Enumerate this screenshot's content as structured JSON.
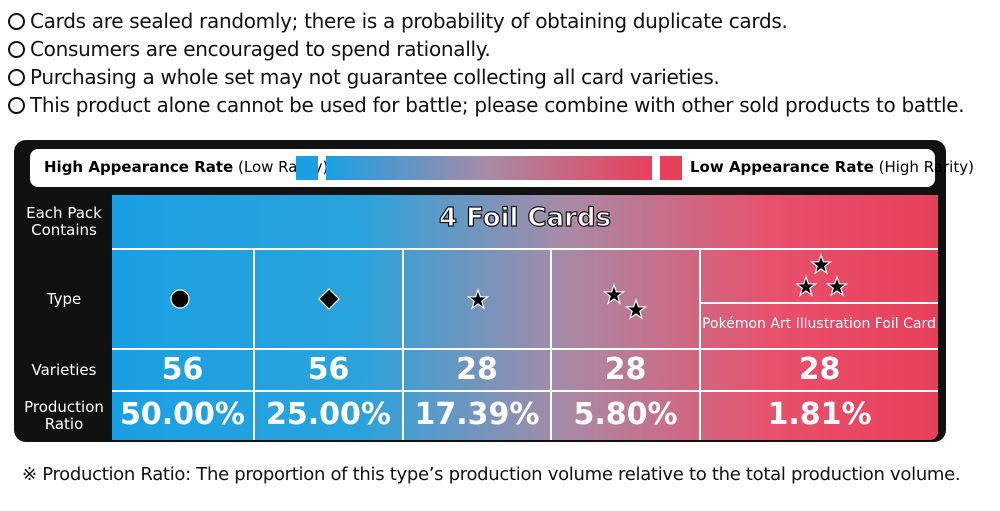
{
  "notes": [
    "Cards are sealed randomly; there is a probability of obtaining duplicate cards.",
    "Consumers are encouraged to spend rationally.",
    "Purchasing a whole set may not guarantee collecting all card varieties.",
    "This product alone cannot be used for battle; please combine with other sold products to battle."
  ],
  "legend": {
    "high": "High Appearance Rate",
    "high_note": "(Low Rarity)",
    "low": "Low Appearance Rate",
    "low_note": "(High Rarity)"
  },
  "table": {
    "contains_label": "Each Pack Contains",
    "contains_value": "4 Foil Cards",
    "type_label": "Type",
    "varieties_label": "Varieties",
    "ratio_label": "Production Ratio",
    "caption": "Pokémon Art Illustration Foil Card",
    "varieties": [
      56,
      56,
      28,
      28,
      28
    ],
    "ratios": [
      "50.00%",
      "25.00%",
      "17.39%",
      "5.80%",
      "1.81%"
    ]
  },
  "footnote": "※ Production Ratio: The proportion of this type’s production volume relative to the total production volume."
}
